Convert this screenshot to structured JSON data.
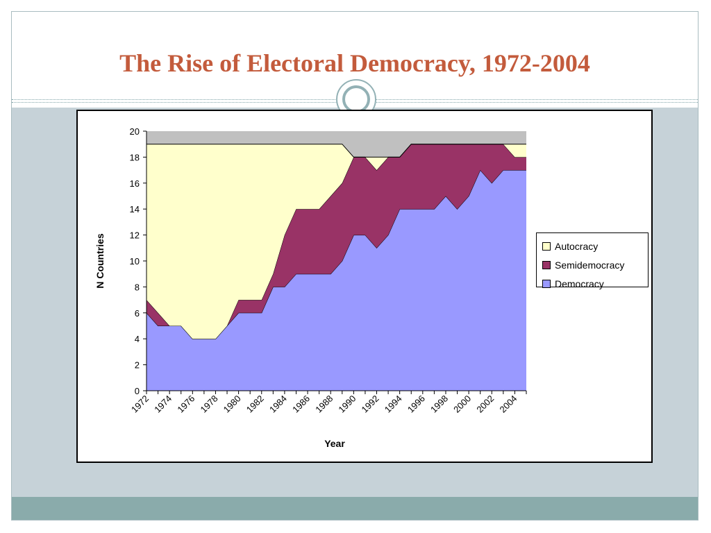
{
  "slide": {
    "title": "The Rise of Electoral Democracy, 1972-2004"
  },
  "colors": {
    "title": "#c35b3c",
    "autocracy": "#ffffcc",
    "semidemocracy": "#993366",
    "democracy": "#9999ff",
    "plot_background": "#c0c0c0",
    "content_background": "#c6d2d8",
    "footer_band": "#8aabab"
  },
  "chart_data": {
    "type": "area",
    "stacked": true,
    "xlabel": "Year",
    "ylabel": "N Countries",
    "ylim": [
      0,
      20
    ],
    "yticks": [
      0,
      2,
      4,
      6,
      8,
      10,
      12,
      14,
      16,
      18,
      20
    ],
    "x": [
      1972,
      1973,
      1974,
      1975,
      1976,
      1977,
      1978,
      1979,
      1980,
      1981,
      1982,
      1983,
      1984,
      1985,
      1986,
      1987,
      1988,
      1989,
      1990,
      1991,
      1992,
      1993,
      1994,
      1995,
      1996,
      1997,
      1998,
      1999,
      2000,
      2001,
      2002,
      2003,
      2004,
      2005
    ],
    "xticks": [
      "1972",
      "1974",
      "1976",
      "1978",
      "1980",
      "1982",
      "1984",
      "1986",
      "1988",
      "1990",
      "1992",
      "1994",
      "1996",
      "1998",
      "2000",
      "2002",
      "2004"
    ],
    "legend_position": "right",
    "series": [
      {
        "name": "Democracy",
        "color": "#9999ff",
        "values": [
          6,
          5,
          5,
          5,
          4,
          4,
          4,
          5,
          6,
          6,
          6,
          8,
          8,
          9,
          9,
          9,
          9,
          10,
          12,
          12,
          11,
          12,
          14,
          14,
          14,
          14,
          15,
          14,
          15,
          17,
          16,
          17,
          17,
          17
        ]
      },
      {
        "name": "Semidemocracy",
        "color": "#993366",
        "values": [
          1,
          1,
          0,
          0,
          0,
          0,
          0,
          0,
          1,
          1,
          1,
          1,
          4,
          5,
          5,
          5,
          6,
          6,
          6,
          6,
          6,
          6,
          4,
          5,
          5,
          5,
          4,
          5,
          4,
          2,
          3,
          2,
          1,
          1
        ]
      },
      {
        "name": "Autocracy",
        "color": "#ffffcc",
        "values": [
          12,
          13,
          14,
          14,
          15,
          15,
          15,
          14,
          12,
          12,
          12,
          10,
          7,
          5,
          5,
          5,
          4,
          3,
          0,
          0,
          1,
          0,
          0,
          0,
          0,
          0,
          0,
          0,
          0,
          0,
          0,
          0,
          1,
          1
        ]
      }
    ],
    "legend": [
      "Autocracy",
      "Semidemocracy",
      "Democracy"
    ]
  }
}
